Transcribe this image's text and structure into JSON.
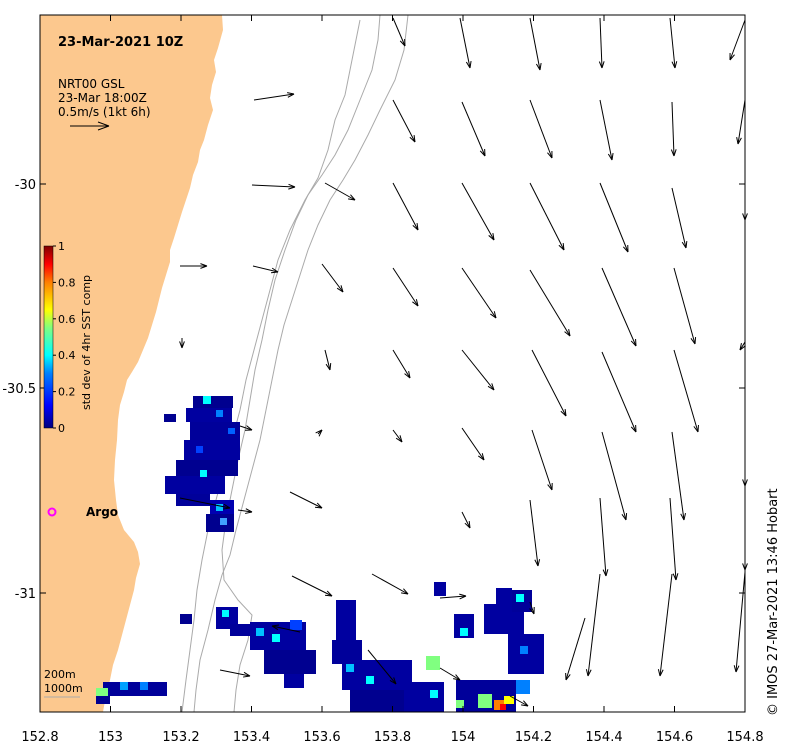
{
  "map": {
    "title": "23-Mar-2021 10Z",
    "vector_info": {
      "line1": "NRT00 GSL",
      "line2": "23-Mar 18:00Z",
      "line3": "0.5m/s (1kt 6h)"
    },
    "colorbar": {
      "label": "std dev of 4hr SST comp",
      "ticks": [
        "1",
        "0.8",
        "0.6",
        "0.4",
        "0.2",
        "0"
      ],
      "colors": [
        "#00007f",
        "#0000ff",
        "#0080ff",
        "#00ffff",
        "#80ff80",
        "#ffff00",
        "#ff8000",
        "#ff0000",
        "#7f0000"
      ]
    },
    "x_ticks": [
      "152.8",
      "153",
      "153.2",
      "153.4",
      "153.6",
      "153.8",
      "154",
      "154.2",
      "154.4",
      "154.6",
      "154.8"
    ],
    "y_ticks": [
      "-30",
      "-30.5",
      "-31"
    ],
    "marker": {
      "label": "Argo",
      "color": "#ff00ff"
    },
    "depth_legend": {
      "line1": "200m",
      "line2": "1000m"
    },
    "credit": "© IMOS 27-Mar-2021 13:46 Hobart",
    "colors": {
      "land": "#fcc88e",
      "sea": "#ffffff",
      "contour": "#aaaaaa",
      "frame": "#000000"
    }
  }
}
